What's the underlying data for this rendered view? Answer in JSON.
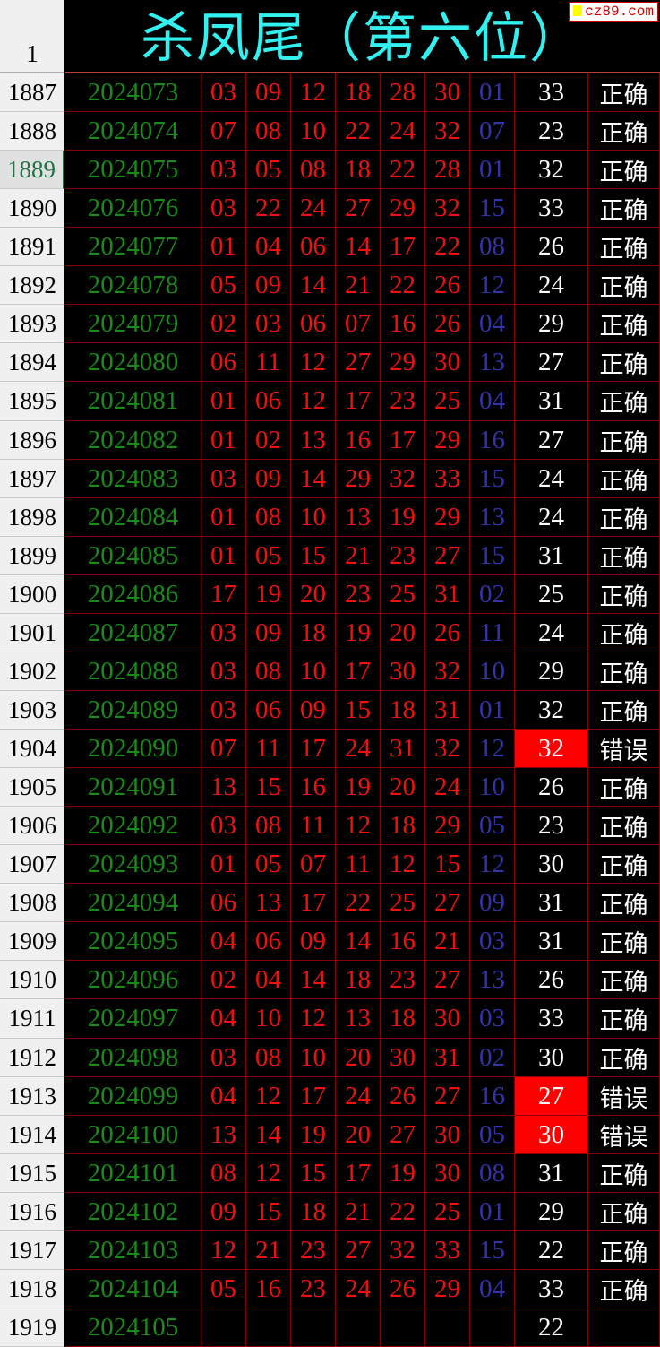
{
  "sheet": {
    "header_row_number": "1",
    "title": "杀凤尾（第六位）",
    "watermark": "cz89.com",
    "selected_row": "1889",
    "colors": {
      "issue": "#1a8a1a",
      "red_ball": "#f01010",
      "blue_ball": "#3333aa",
      "title": "#33f0f0",
      "error_fill": "#ff0000"
    },
    "rows": [
      {
        "row": "1887",
        "issue": "2024073",
        "reds": [
          "03",
          "09",
          "12",
          "18",
          "28",
          "30"
        ],
        "blue": "01",
        "kill": "33",
        "result": "正确"
      },
      {
        "row": "1888",
        "issue": "2024074",
        "reds": [
          "07",
          "08",
          "10",
          "22",
          "24",
          "32"
        ],
        "blue": "07",
        "kill": "23",
        "result": "正确"
      },
      {
        "row": "1889",
        "issue": "2024075",
        "reds": [
          "03",
          "05",
          "08",
          "18",
          "22",
          "28"
        ],
        "blue": "01",
        "kill": "32",
        "result": "正确"
      },
      {
        "row": "1890",
        "issue": "2024076",
        "reds": [
          "03",
          "22",
          "24",
          "27",
          "29",
          "32"
        ],
        "blue": "15",
        "kill": "33",
        "result": "正确"
      },
      {
        "row": "1891",
        "issue": "2024077",
        "reds": [
          "01",
          "04",
          "06",
          "14",
          "17",
          "22"
        ],
        "blue": "08",
        "kill": "26",
        "result": "正确"
      },
      {
        "row": "1892",
        "issue": "2024078",
        "reds": [
          "05",
          "09",
          "14",
          "21",
          "22",
          "26"
        ],
        "blue": "12",
        "kill": "24",
        "result": "正确"
      },
      {
        "row": "1893",
        "issue": "2024079",
        "reds": [
          "02",
          "03",
          "06",
          "07",
          "16",
          "26"
        ],
        "blue": "04",
        "kill": "29",
        "result": "正确"
      },
      {
        "row": "1894",
        "issue": "2024080",
        "reds": [
          "06",
          "11",
          "12",
          "27",
          "29",
          "30"
        ],
        "blue": "13",
        "kill": "27",
        "result": "正确"
      },
      {
        "row": "1895",
        "issue": "2024081",
        "reds": [
          "01",
          "06",
          "12",
          "17",
          "23",
          "25"
        ],
        "blue": "04",
        "kill": "31",
        "result": "正确"
      },
      {
        "row": "1896",
        "issue": "2024082",
        "reds": [
          "01",
          "02",
          "13",
          "16",
          "17",
          "29"
        ],
        "blue": "16",
        "kill": "27",
        "result": "正确"
      },
      {
        "row": "1897",
        "issue": "2024083",
        "reds": [
          "03",
          "09",
          "14",
          "29",
          "32",
          "33"
        ],
        "blue": "15",
        "kill": "24",
        "result": "正确"
      },
      {
        "row": "1898",
        "issue": "2024084",
        "reds": [
          "01",
          "08",
          "10",
          "13",
          "19",
          "29"
        ],
        "blue": "13",
        "kill": "24",
        "result": "正确"
      },
      {
        "row": "1899",
        "issue": "2024085",
        "reds": [
          "01",
          "05",
          "15",
          "21",
          "23",
          "27"
        ],
        "blue": "15",
        "kill": "31",
        "result": "正确"
      },
      {
        "row": "1900",
        "issue": "2024086",
        "reds": [
          "17",
          "19",
          "20",
          "23",
          "25",
          "31"
        ],
        "blue": "02",
        "kill": "25",
        "result": "正确"
      },
      {
        "row": "1901",
        "issue": "2024087",
        "reds": [
          "03",
          "09",
          "18",
          "19",
          "20",
          "26"
        ],
        "blue": "11",
        "kill": "24",
        "result": "正确"
      },
      {
        "row": "1902",
        "issue": "2024088",
        "reds": [
          "03",
          "08",
          "10",
          "17",
          "30",
          "32"
        ],
        "blue": "10",
        "kill": "29",
        "result": "正确"
      },
      {
        "row": "1903",
        "issue": "2024089",
        "reds": [
          "03",
          "06",
          "09",
          "15",
          "18",
          "31"
        ],
        "blue": "01",
        "kill": "32",
        "result": "正确"
      },
      {
        "row": "1904",
        "issue": "2024090",
        "reds": [
          "07",
          "11",
          "17",
          "24",
          "31",
          "32"
        ],
        "blue": "12",
        "kill": "32",
        "result": "错误",
        "error": true
      },
      {
        "row": "1905",
        "issue": "2024091",
        "reds": [
          "13",
          "15",
          "16",
          "19",
          "20",
          "24"
        ],
        "blue": "10",
        "kill": "26",
        "result": "正确"
      },
      {
        "row": "1906",
        "issue": "2024092",
        "reds": [
          "03",
          "08",
          "11",
          "12",
          "18",
          "29"
        ],
        "blue": "05",
        "kill": "23",
        "result": "正确"
      },
      {
        "row": "1907",
        "issue": "2024093",
        "reds": [
          "01",
          "05",
          "07",
          "11",
          "12",
          "15"
        ],
        "blue": "12",
        "kill": "30",
        "result": "正确"
      },
      {
        "row": "1908",
        "issue": "2024094",
        "reds": [
          "06",
          "13",
          "17",
          "22",
          "25",
          "27"
        ],
        "blue": "09",
        "kill": "31",
        "result": "正确"
      },
      {
        "row": "1909",
        "issue": "2024095",
        "reds": [
          "04",
          "06",
          "09",
          "14",
          "16",
          "21"
        ],
        "blue": "03",
        "kill": "31",
        "result": "正确"
      },
      {
        "row": "1910",
        "issue": "2024096",
        "reds": [
          "02",
          "04",
          "14",
          "18",
          "23",
          "27"
        ],
        "blue": "13",
        "kill": "26",
        "result": "正确"
      },
      {
        "row": "1911",
        "issue": "2024097",
        "reds": [
          "04",
          "10",
          "12",
          "13",
          "18",
          "30"
        ],
        "blue": "03",
        "kill": "33",
        "result": "正确"
      },
      {
        "row": "1912",
        "issue": "2024098",
        "reds": [
          "03",
          "08",
          "10",
          "20",
          "30",
          "31"
        ],
        "blue": "02",
        "kill": "30",
        "result": "正确"
      },
      {
        "row": "1913",
        "issue": "2024099",
        "reds": [
          "04",
          "12",
          "17",
          "24",
          "26",
          "27"
        ],
        "blue": "16",
        "kill": "27",
        "result": "错误",
        "error": true
      },
      {
        "row": "1914",
        "issue": "2024100",
        "reds": [
          "13",
          "14",
          "19",
          "20",
          "27",
          "30"
        ],
        "blue": "05",
        "kill": "30",
        "result": "错误",
        "error": true
      },
      {
        "row": "1915",
        "issue": "2024101",
        "reds": [
          "08",
          "12",
          "15",
          "17",
          "19",
          "30"
        ],
        "blue": "08",
        "kill": "31",
        "result": "正确"
      },
      {
        "row": "1916",
        "issue": "2024102",
        "reds": [
          "09",
          "15",
          "18",
          "21",
          "22",
          "25"
        ],
        "blue": "01",
        "kill": "29",
        "result": "正确"
      },
      {
        "row": "1917",
        "issue": "2024103",
        "reds": [
          "12",
          "21",
          "23",
          "27",
          "32",
          "33"
        ],
        "blue": "15",
        "kill": "22",
        "result": "正确"
      },
      {
        "row": "1918",
        "issue": "2024104",
        "reds": [
          "05",
          "16",
          "23",
          "24",
          "26",
          "29"
        ],
        "blue": "04",
        "kill": "33",
        "result": "正确"
      },
      {
        "row": "1919",
        "issue": "2024105",
        "reds": [
          "",
          "",
          "",
          "",
          "",
          ""
        ],
        "blue": "",
        "kill": "22",
        "result": ""
      }
    ]
  }
}
